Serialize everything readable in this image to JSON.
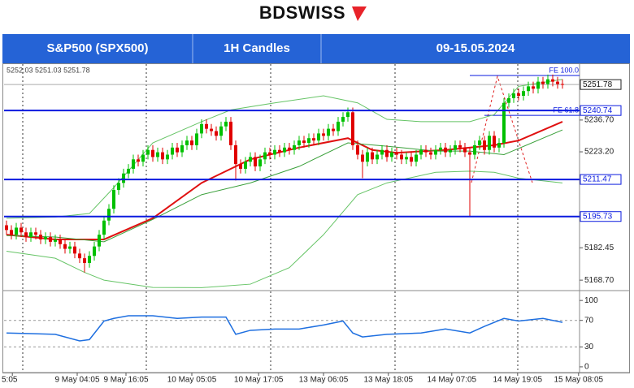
{
  "header": {
    "logo": "BDSWISS",
    "cells": [
      "S&P500 (SPX500)",
      "1H Candles",
      "09-15.05.2024"
    ]
  },
  "chart_data": {
    "type": "candlestick",
    "ohlc_label": "5252.03 5251.03 5251.78",
    "up_color": "#00c000",
    "down_color": "#e00000",
    "xlim": [
      -0.5,
      117.5
    ],
    "ylim": [
      5165.3,
      5260.1
    ],
    "yticks": [
      {
        "value": 5168.7,
        "label": "5168.70"
      },
      5182.45,
      {
        "value": 5223.2,
        "label": "5223.20"
      },
      {
        "value": 5236.7,
        "label": "5236.70"
      }
    ],
    "xticks": [
      {
        "value": 1.2,
        "label": "5:05"
      },
      {
        "value": 14.5,
        "label": "9 May 04:05"
      },
      {
        "value": 24.5,
        "label": "9 May 16:05"
      },
      {
        "value": 38,
        "label": "10 May 05:05"
      },
      {
        "value": 51.7,
        "label": "10 May 17:05"
      },
      {
        "value": 65,
        "label": "13 May 06:05"
      },
      {
        "value": 78.3,
        "label": "13 May 18:05"
      },
      {
        "value": 91.3,
        "label": "14 May 07:05"
      },
      {
        "value": 104.8,
        "label": "14 May 19:05"
      },
      {
        "value": 117.3,
        "label": "15 May 08:05"
      }
    ],
    "open": [
      5192,
      5190,
      5188,
      5191,
      5189,
      5187,
      5189,
      5188,
      5186,
      5187,
      5185,
      5186,
      5184,
      5182,
      5183,
      5180,
      5178,
      5176,
      5179,
      5183,
      5188,
      5194,
      5199,
      5207,
      5210,
      5214,
      5216,
      5220,
      5219,
      5222,
      5224,
      5221,
      5223,
      5220,
      5222,
      5225,
      5223,
      5226,
      5228,
      5226,
      5231,
      5235,
      5233,
      5232,
      5230,
      5234,
      5236,
      5226,
      5218,
      5216,
      5219,
      5221,
      5217,
      5220,
      5223,
      5222,
      5224,
      5223,
      5225,
      5224,
      5226,
      5228,
      5227,
      5229,
      5228,
      5231,
      5230,
      5233,
      5232,
      5236,
      5238,
      5240,
      5226,
      5222,
      5219,
      5223,
      5220,
      5222,
      5224,
      5221,
      5223,
      5222,
      5220,
      5221,
      5219,
      5222,
      5224,
      5223,
      5222,
      5224,
      5225,
      5223,
      5224,
      5226,
      5225,
      5223,
      5222,
      5226,
      5228,
      5224,
      5230,
      5225,
      5227,
      5244,
      5246,
      5248,
      5247,
      5249,
      5251,
      5250,
      5253,
      5252,
      5254,
      5253,
      5252
    ],
    "high": [
      5194,
      5192,
      5193,
      5193,
      5191,
      5191,
      5191,
      5190,
      5189,
      5189,
      5188,
      5188,
      5186,
      5185,
      5185,
      5182,
      5180,
      5181,
      5185,
      5190,
      5196,
      5201,
      5209,
      5212,
      5216,
      5218,
      5222,
      5222,
      5224,
      5226,
      5226,
      5225,
      5225,
      5224,
      5227,
      5227,
      5228,
      5230,
      5230,
      5233,
      5237,
      5237,
      5235,
      5234,
      5236,
      5238,
      5238,
      5228,
      5220,
      5221,
      5223,
      5223,
      5222,
      5225,
      5225,
      5226,
      5226,
      5227,
      5227,
      5228,
      5230,
      5230,
      5231,
      5231,
      5233,
      5233,
      5235,
      5235,
      5238,
      5240,
      5242,
      5242,
      5228,
      5224,
      5225,
      5225,
      5224,
      5226,
      5226,
      5225,
      5225,
      5224,
      5223,
      5223,
      5224,
      5226,
      5226,
      5225,
      5226,
      5227,
      5227,
      5226,
      5228,
      5228,
      5227,
      5225,
      5228,
      5230,
      5230,
      5232,
      5232,
      5229,
      5246,
      5248,
      5250,
      5250,
      5251,
      5253,
      5253,
      5255,
      5255,
      5256,
      5256,
      5255,
      5254
    ],
    "low": [
      5188,
      5186,
      5186,
      5187,
      5185,
      5185,
      5186,
      5184,
      5184,
      5183,
      5183,
      5182,
      5180,
      5180,
      5178,
      5176,
      5172,
      5174,
      5177,
      5181,
      5186,
      5192,
      5197,
      5205,
      5208,
      5212,
      5214,
      5217,
      5217,
      5220,
      5219,
      5219,
      5218,
      5218,
      5220,
      5221,
      5221,
      5224,
      5224,
      5224,
      5229,
      5231,
      5230,
      5228,
      5228,
      5232,
      5224,
      5211,
      5214,
      5214,
      5217,
      5215,
      5215,
      5218,
      5220,
      5220,
      5221,
      5221,
      5222,
      5222,
      5224,
      5225,
      5225,
      5226,
      5226,
      5228,
      5228,
      5230,
      5230,
      5234,
      5236,
      5224,
      5220,
      5212,
      5217,
      5218,
      5218,
      5220,
      5219,
      5219,
      5220,
      5218,
      5218,
      5217,
      5217,
      5220,
      5221,
      5220,
      5220,
      5222,
      5221,
      5221,
      5222,
      5223,
      5221,
      5195.7,
      5220,
      5224,
      5222,
      5222,
      5223,
      5223,
      5225,
      5242,
      5244,
      5245,
      5245,
      5247,
      5248,
      5248,
      5250,
      5250,
      5251,
      5250,
      5250
    ],
    "close": [
      5190,
      5188,
      5191,
      5189,
      5187,
      5189,
      5188,
      5186,
      5187,
      5185,
      5186,
      5184,
      5182,
      5183,
      5180,
      5178,
      5176,
      5179,
      5183,
      5188,
      5194,
      5199,
      5207,
      5210,
      5214,
      5216,
      5220,
      5219,
      5222,
      5224,
      5221,
      5223,
      5220,
      5222,
      5225,
      5223,
      5226,
      5228,
      5226,
      5231,
      5235,
      5233,
      5232,
      5230,
      5234,
      5236,
      5226,
      5218,
      5216,
      5219,
      5221,
      5217,
      5220,
      5223,
      5222,
      5224,
      5223,
      5225,
      5224,
      5226,
      5228,
      5227,
      5229,
      5228,
      5231,
      5230,
      5233,
      5232,
      5236,
      5238,
      5240,
      5226,
      5222,
      5219,
      5223,
      5220,
      5222,
      5224,
      5221,
      5223,
      5222,
      5220,
      5221,
      5219,
      5222,
      5224,
      5223,
      5222,
      5224,
      5225,
      5223,
      5224,
      5226,
      5225,
      5223,
      5222,
      5226,
      5228,
      5224,
      5230,
      5225,
      5227,
      5244,
      5246,
      5248,
      5247,
      5249,
      5251,
      5250,
      5253,
      5252,
      5254,
      5253,
      5252,
      5251.78
    ],
    "overlays": [
      {
        "color": "#e01010",
        "width": 2,
        "x": [
          0,
          10,
          20,
          30,
          40,
          50,
          60,
          70,
          75,
          80,
          90,
          100,
          105,
          114
        ],
        "values": [
          5188,
          5186,
          5186,
          5195,
          5210,
          5220,
          5225,
          5229,
          5224,
          5222.8,
          5224,
          5226,
          5228,
          5236
        ]
      },
      {
        "color": "#66c466",
        "width": 1,
        "x": [
          0,
          10,
          17,
          22,
          30,
          40,
          46,
          55,
          65,
          72,
          78,
          85,
          95,
          100,
          105,
          114
        ],
        "values": [
          5195,
          5195.5,
          5197,
          5208,
          5227,
          5236,
          5241,
          5244,
          5247,
          5244,
          5237,
          5236,
          5236,
          5239,
          5251,
          5254
        ]
      },
      {
        "color": "#3aa03a",
        "width": 1,
        "x": [
          0,
          10,
          20,
          30,
          40,
          50,
          60,
          70,
          78,
          88,
          95,
          102,
          114
        ],
        "values": [
          5187.6,
          5187,
          5185,
          5194.5,
          5205,
          5210,
          5217,
          5227,
          5225.6,
          5223.5,
          5223.5,
          5222,
          5232.5
        ]
      },
      {
        "color": "#66c466",
        "width": 1,
        "x": [
          0,
          10,
          16,
          20,
          30,
          40,
          50,
          58,
          65,
          72,
          78,
          88,
          95,
          100,
          105,
          114
        ],
        "values": [
          5181,
          5178,
          5172,
          5168.7,
          5165.6,
          5165.5,
          5167,
          5174,
          5188,
          5205,
          5210,
          5214.5,
          5215,
          5214.5,
          5212,
          5210
        ]
      }
    ],
    "levels": [
      5240.74,
      5211.47,
      5195.73
    ],
    "level_color": "#0a1adf",
    "last_price": 5251.78,
    "fib": [
      {
        "value": 5255.6,
        "label": "FE 100.0",
        "from": 95
      },
      {
        "value": 5238.7,
        "label": "FE 61.8",
        "from": 98
      }
    ],
    "rsi": {
      "ylim": [
        -5,
        110
      ],
      "yticks": [
        0,
        30,
        70,
        100
      ],
      "guides": [
        30,
        70
      ],
      "color": "#1e6fe0",
      "x": [
        0,
        5,
        10,
        15,
        17,
        20,
        22,
        25,
        30,
        35,
        40,
        45,
        47,
        50,
        55,
        60,
        65,
        69,
        71,
        73,
        78,
        85,
        90,
        95,
        98,
        102,
        105,
        110,
        114
      ],
      "values": [
        51,
        50,
        49,
        39,
        41,
        69,
        73,
        77,
        77,
        73,
        75,
        75,
        49,
        55,
        57,
        57,
        63,
        69,
        51,
        45,
        49,
        51,
        57,
        51,
        61,
        73,
        69,
        73,
        67
      ]
    }
  }
}
